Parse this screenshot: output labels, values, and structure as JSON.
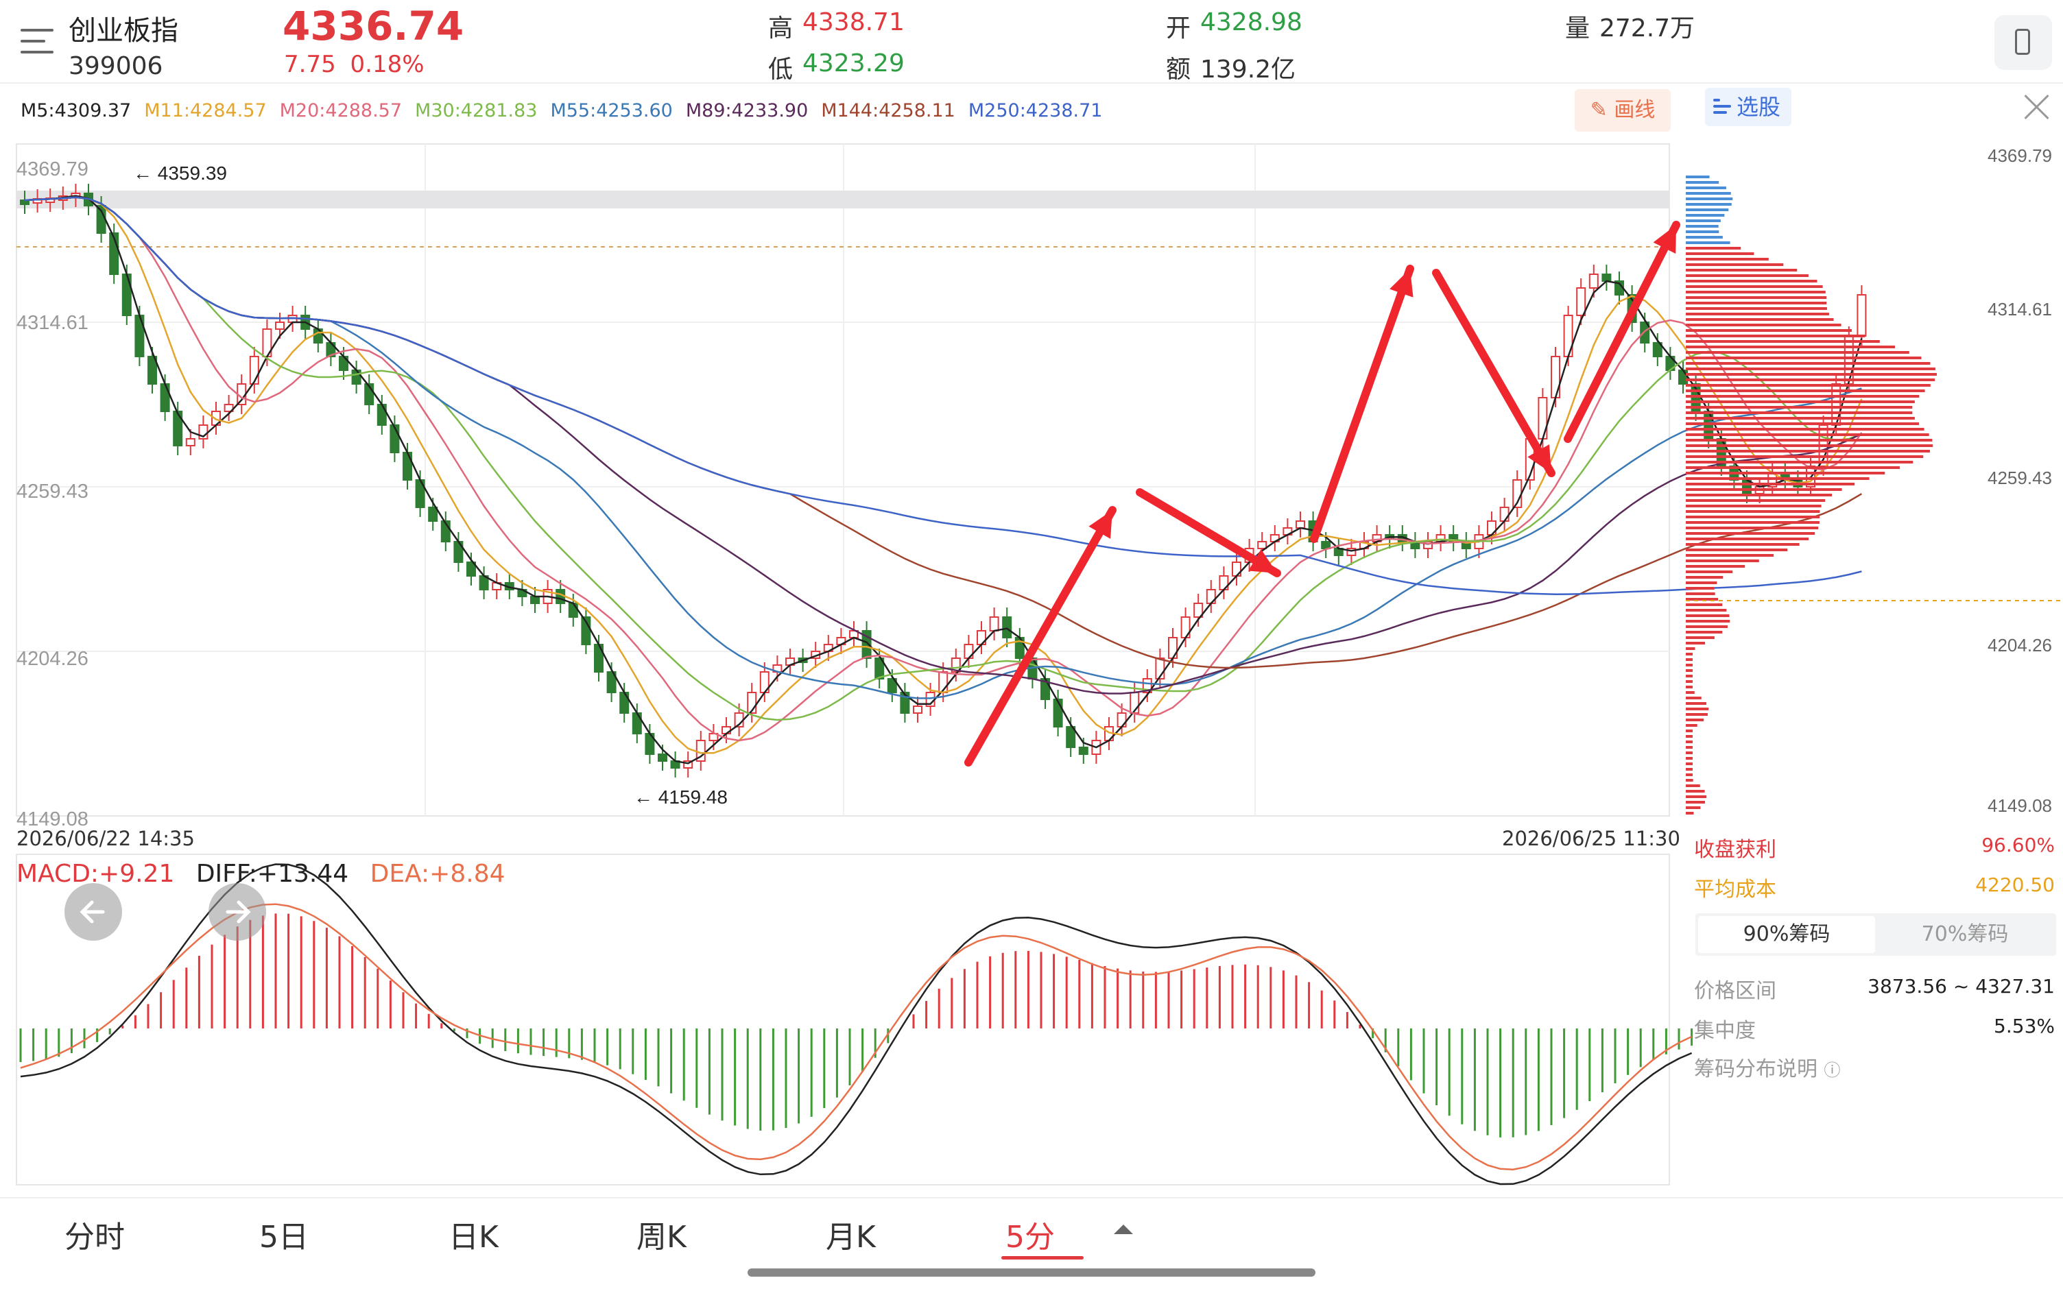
{
  "header": {
    "index_name": "创业板指",
    "index_code": "399006",
    "price": "4336.74",
    "change": "7.75",
    "change_pct": "0.18%",
    "high_label": "高",
    "high": "4338.71",
    "low_label": "低",
    "low": "4323.29",
    "open_label": "开",
    "open": "4328.98",
    "amount_label": "额",
    "amount": "139.2亿",
    "volume_label": "量",
    "volume": "272.7万"
  },
  "ma_legend": [
    {
      "text": "M5:4309.37",
      "color": "#222222"
    },
    {
      "text": "M11:4284.57",
      "color": "#e3a52b"
    },
    {
      "text": "M20:4288.57",
      "color": "#e0687c"
    },
    {
      "text": "M30:4281.83",
      "color": "#7dba4a"
    },
    {
      "text": "M55:4253.60",
      "color": "#3a79b6"
    },
    {
      "text": "M89:4233.90",
      "color": "#5a2a5a"
    },
    {
      "text": "M144:4258.11",
      "color": "#a0442e"
    },
    {
      "text": "M250:4238.71",
      "color": "#3d63c8"
    }
  ],
  "toolbar": {
    "draw_label": "画线",
    "pick_label": "选股"
  },
  "chart": {
    "price_axis": [
      "4369.79",
      "4314.61",
      "4259.43",
      "4204.26",
      "4149.08"
    ],
    "high_annotation": "4359.39",
    "low_annotation": "4159.48",
    "start_time": "2026/06/22 14:35",
    "end_time": "2026/06/25 11:30"
  },
  "chips": {
    "profit_label": "收盘获利",
    "profit_value": "96.60%",
    "cost_label": "平均成本",
    "cost_value": "4220.50",
    "tab_90": "90%筹码",
    "tab_70": "70%筹码",
    "range_label": "价格区间",
    "range_value": "3873.56 ~ 4327.31",
    "concentration_label": "集中度",
    "concentration_value": "5.53%",
    "help_label": "筹码分布说明"
  },
  "macd": {
    "macd_label": "MACD:+9.21",
    "diff_label": "DIFF:+13.44",
    "dea_label": "DEA:+8.84"
  },
  "tabs": [
    "分时",
    "5日",
    "日K",
    "周K",
    "月K",
    "5分"
  ],
  "active_tab": "5分",
  "colors": {
    "up": "#e0393e",
    "down": "#2e7d32",
    "accent": "#e0393e"
  }
}
